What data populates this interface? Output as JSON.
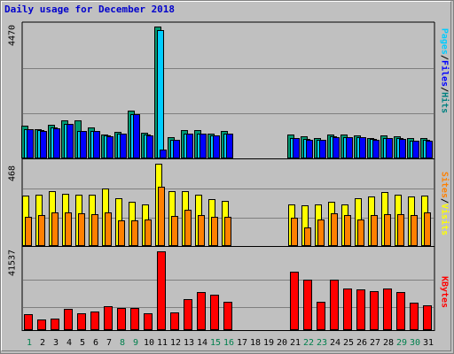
{
  "chart_data": {
    "type": "bar",
    "title": "Daily usage for December 2018",
    "categories": [
      "1",
      "2",
      "3",
      "4",
      "5",
      "6",
      "7",
      "8",
      "9",
      "10",
      "11",
      "12",
      "13",
      "14",
      "15",
      "16",
      "17",
      "18",
      "19",
      "20",
      "21",
      "22",
      "23",
      "24",
      "25",
      "26",
      "27",
      "28",
      "29",
      "30",
      "31"
    ],
    "weekend_days": [
      "1",
      "8",
      "9",
      "15",
      "16",
      "22",
      "23",
      "29",
      "30"
    ],
    "panels": [
      {
        "id": "pages-files-hits",
        "max_label": "4470",
        "ymax": 4470,
        "legend": [
          "Pages",
          "Files",
          "Hits"
        ],
        "legend_colors": [
          "#00ccff",
          "#0000ff",
          "#008080"
        ],
        "series": [
          {
            "name": "Hits",
            "color": "#009973",
            "values": [
              1100,
              1000,
              1140,
              1290,
              1300,
              1050,
              820,
              900,
              1630,
              880,
              4470,
              720,
              950,
              950,
              850,
              920,
              0,
              0,
              0,
              0,
              820,
              760,
              700,
              820,
              800,
              780,
              700,
              780,
              750,
              680,
              680
            ]
          },
          {
            "name": "Files",
            "color": "#00ccff",
            "values": [
              1000,
              950,
              1040,
              1170,
              930,
              940,
              770,
              840,
              1510,
              800,
              4350,
              640,
              850,
              850,
              780,
              850,
              0,
              0,
              0,
              0,
              700,
              650,
              630,
              740,
              730,
              720,
              650,
              700,
              680,
              610,
              620
            ]
          },
          {
            "name": "Pages",
            "color": "#0000ff",
            "values": [
              990,
              940,
              1030,
              1160,
              920,
              930,
              760,
              830,
              1500,
              790,
              300,
              630,
              840,
              840,
              770,
              840,
              0,
              0,
              0,
              0,
              690,
              640,
              620,
              730,
              720,
              710,
              640,
              690,
              670,
              600,
              610
            ]
          }
        ]
      },
      {
        "id": "sites-visits",
        "max_label": "468",
        "ymax": 468,
        "legend": [
          "Sites",
          "Visits"
        ],
        "legend_colors": [
          "#ff8000",
          "#ffff00"
        ],
        "series": [
          {
            "name": "Visits",
            "color": "#ffff00",
            "values": [
              285,
              290,
              310,
              295,
              290,
              290,
              325,
              270,
              250,
              235,
              468,
              310,
              310,
              290,
              265,
              255,
              0,
              0,
              0,
              0,
              235,
              230,
              235,
              250,
              235,
              270,
              280,
              305,
              290,
              280,
              285
            ]
          },
          {
            "name": "Sites",
            "color": "#ff8000",
            "values": [
              165,
              175,
              190,
              190,
              185,
              180,
              190,
              145,
              145,
              150,
              335,
              170,
              205,
              175,
              165,
              165,
              0,
              0,
              0,
              0,
              160,
              105,
              150,
              185,
              175,
              150,
              175,
              180,
              180,
              175,
              190
            ]
          }
        ]
      },
      {
        "id": "kbytes",
        "max_label": "41537",
        "ymax": 41537,
        "legend": [
          "KBytes"
        ],
        "legend_colors": [
          "#ff0000"
        ],
        "series": [
          {
            "name": "KBytes",
            "color": "#ff0000",
            "values": [
              8600,
              5800,
              5900,
              11000,
              8800,
              9600,
              12500,
              11600,
              11700,
              8900,
              41537,
              9200,
              16300,
              20300,
              18500,
              14800,
              0,
              0,
              0,
              0,
              30700,
              26600,
              15000,
              26600,
              22000,
              21400,
              20700,
              21800,
              20200,
              14600,
              12900
            ]
          }
        ]
      }
    ]
  }
}
